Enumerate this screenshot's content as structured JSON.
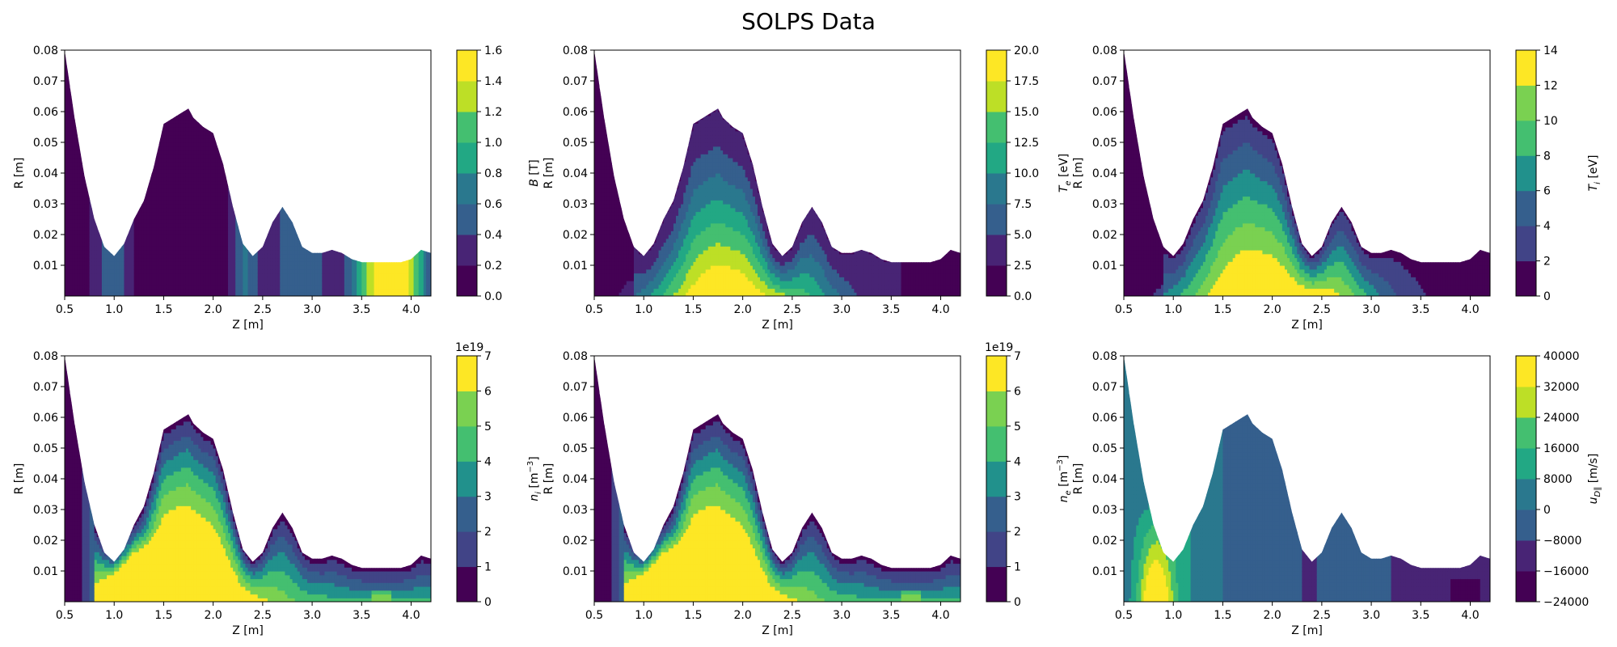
{
  "title": "SOLPS Data",
  "colormap": [
    "#440154",
    "#482475",
    "#414487",
    "#355f8d",
    "#2a788e",
    "#21918c",
    "#22a884",
    "#44bf70",
    "#7ad151",
    "#bddf26",
    "#fde725"
  ],
  "chart_data": [
    {
      "type": "contour",
      "xlabel": "Z [m]",
      "ylabel": "R [m]",
      "xlim": [
        0.5,
        4.2
      ],
      "ylim": [
        0,
        0.08
      ],
      "xticks": [
        "0.5",
        "1.0",
        "1.5",
        "2.0",
        "2.5",
        "3.0",
        "3.5",
        "4.0"
      ],
      "yticks": [
        "0.01",
        "0.02",
        "0.03",
        "0.04",
        "0.05",
        "0.06",
        "0.07",
        "0.08"
      ],
      "colorbar": {
        "label": "B [T]",
        "label_main": "B",
        "label_unit": "[T]",
        "sub": "",
        "exponent": "",
        "levels": [
          0.0,
          0.2,
          0.4,
          0.6,
          0.8,
          1.0,
          1.2,
          1.4,
          1.6
        ],
        "ticks": [
          "0.0",
          "0.2",
          "0.4",
          "0.6",
          "0.8",
          "1.0",
          "1.2",
          "1.4",
          "1.6"
        ]
      },
      "field": "B"
    },
    {
      "type": "contour",
      "xlabel": "Z [m]",
      "ylabel": "R [m]",
      "xlim": [
        0.5,
        4.2
      ],
      "ylim": [
        0,
        0.08
      ],
      "xticks": [
        "0.5",
        "1.0",
        "1.5",
        "2.0",
        "2.5",
        "3.0",
        "3.5",
        "4.0"
      ],
      "yticks": [
        "0.01",
        "0.02",
        "0.03",
        "0.04",
        "0.05",
        "0.06",
        "0.07",
        "0.08"
      ],
      "colorbar": {
        "label": "T_e [eV]",
        "label_main": "T",
        "label_unit": "[eV]",
        "sub": "e",
        "exponent": "",
        "levels": [
          0.0,
          2.5,
          5.0,
          7.5,
          10.0,
          12.5,
          15.0,
          17.5,
          20.0
        ],
        "ticks": [
          "0.0",
          "2.5",
          "5.0",
          "7.5",
          "10.0",
          "12.5",
          "15.0",
          "17.5",
          "20.0"
        ]
      },
      "field": "Te"
    },
    {
      "type": "contour",
      "xlabel": "Z [m]",
      "ylabel": "R [m]",
      "xlim": [
        0.5,
        4.2
      ],
      "ylim": [
        0,
        0.08
      ],
      "xticks": [
        "0.5",
        "1.0",
        "1.5",
        "2.0",
        "2.5",
        "3.0",
        "3.5",
        "4.0"
      ],
      "yticks": [
        "0.01",
        "0.02",
        "0.03",
        "0.04",
        "0.05",
        "0.06",
        "0.07",
        "0.08"
      ],
      "colorbar": {
        "label": "T_i [eV]",
        "label_main": "T",
        "label_unit": "[eV]",
        "sub": "i",
        "exponent": "",
        "levels": [
          0,
          2,
          4,
          6,
          8,
          10,
          12,
          14
        ],
        "ticks": [
          "0",
          "2",
          "4",
          "6",
          "8",
          "10",
          "12",
          "14"
        ]
      },
      "field": "Ti"
    },
    {
      "type": "contour",
      "xlabel": "Z [m]",
      "ylabel": "R [m]",
      "xlim": [
        0.5,
        4.2
      ],
      "ylim": [
        0,
        0.08
      ],
      "xticks": [
        "0.5",
        "1.0",
        "1.5",
        "2.0",
        "2.5",
        "3.0",
        "3.5",
        "4.0"
      ],
      "yticks": [
        "0.01",
        "0.02",
        "0.03",
        "0.04",
        "0.05",
        "0.06",
        "0.07",
        "0.08"
      ],
      "colorbar": {
        "label": "n_i [m^-3]",
        "label_main": "n",
        "label_unit": "[m",
        "sub": "i",
        "exponent": "1e19",
        "levels": [
          0,
          1,
          2,
          3,
          4,
          5,
          6,
          7
        ],
        "ticks": [
          "0",
          "1",
          "2",
          "3",
          "4",
          "5",
          "6",
          "7"
        ]
      },
      "field": "ni"
    },
    {
      "type": "contour",
      "xlabel": "Z [m]",
      "ylabel": "R [m]",
      "xlim": [
        0.5,
        4.2
      ],
      "ylim": [
        0,
        0.08
      ],
      "xticks": [
        "0.5",
        "1.0",
        "1.5",
        "2.0",
        "2.5",
        "3.0",
        "3.5",
        "4.0"
      ],
      "yticks": [
        "0.01",
        "0.02",
        "0.03",
        "0.04",
        "0.05",
        "0.06",
        "0.07",
        "0.08"
      ],
      "colorbar": {
        "label": "n_e [m^-3]",
        "label_main": "n",
        "label_unit": "[m",
        "sub": "e",
        "exponent": "1e19",
        "levels": [
          0,
          1,
          2,
          3,
          4,
          5,
          6,
          7
        ],
        "ticks": [
          "0",
          "1",
          "2",
          "3",
          "4",
          "5",
          "6",
          "7"
        ]
      },
      "field": "ne"
    },
    {
      "type": "contour",
      "xlabel": "Z [m]",
      "ylabel": "R [m]",
      "xlim": [
        0.5,
        4.2
      ],
      "ylim": [
        0,
        0.08
      ],
      "xticks": [
        "0.5",
        "1.0",
        "1.5",
        "2.0",
        "2.5",
        "3.0",
        "3.5",
        "4.0"
      ],
      "yticks": [
        "0.01",
        "0.02",
        "0.03",
        "0.04",
        "0.05",
        "0.06",
        "0.07",
        "0.08"
      ],
      "colorbar": {
        "label": "u_D∥ [m/s]",
        "label_main": "u",
        "label_unit": "[m/s]",
        "sub": "D∥",
        "exponent": "",
        "levels": [
          -24000,
          -16000,
          -8000,
          0,
          8000,
          16000,
          24000,
          32000,
          40000
        ],
        "ticks": [
          "−24000",
          "−16000",
          "−8000",
          "0",
          "8000",
          "16000",
          "24000",
          "32000",
          "40000"
        ]
      },
      "field": "u"
    }
  ],
  "boundary": {
    "z": [
      0.5,
      0.6,
      0.7,
      0.8,
      0.9,
      1.0,
      1.1,
      1.2,
      1.3,
      1.4,
      1.5,
      1.6,
      1.7,
      1.75,
      1.8,
      1.9,
      2.0,
      2.1,
      2.2,
      2.3,
      2.4,
      2.5,
      2.6,
      2.7,
      2.8,
      2.9,
      3.0,
      3.1,
      3.2,
      3.3,
      3.4,
      3.5,
      3.6,
      3.7,
      3.8,
      3.9,
      4.0,
      4.1,
      4.2
    ],
    "r": [
      0.08,
      0.058,
      0.039,
      0.025,
      0.016,
      0.013,
      0.017,
      0.025,
      0.031,
      0.042,
      0.056,
      0.058,
      0.06,
      0.061,
      0.058,
      0.055,
      0.053,
      0.043,
      0.029,
      0.017,
      0.013,
      0.016,
      0.024,
      0.029,
      0.024,
      0.016,
      0.014,
      0.014,
      0.015,
      0.014,
      0.012,
      0.011,
      0.011,
      0.011,
      0.011,
      0.011,
      0.012,
      0.015,
      0.014
    ]
  }
}
